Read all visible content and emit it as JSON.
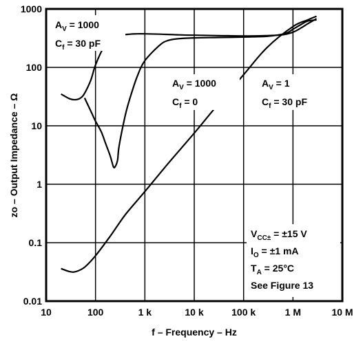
{
  "chart_data": {
    "type": "line",
    "xscale": "log",
    "yscale": "log",
    "xlim": [
      10,
      10000000
    ],
    "ylim": [
      0.01,
      1000
    ],
    "grid": true,
    "xlabel": "f – Frequency – Hz",
    "ylabel": "zo – Output Impedance – Ω",
    "xticks": [
      {
        "value": 10,
        "label": "10"
      },
      {
        "value": 100,
        "label": "100"
      },
      {
        "value": 1000,
        "label": "1 k"
      },
      {
        "value": 10000,
        "label": "10 k"
      },
      {
        "value": 100000,
        "label": "100 k"
      },
      {
        "value": 1000000,
        "label": "1 M"
      },
      {
        "value": 10000000,
        "label": "10 M"
      }
    ],
    "yticks": [
      {
        "value": 0.01,
        "label": "0.01"
      },
      {
        "value": 0.1,
        "label": "0.1"
      },
      {
        "value": 1,
        "label": "1"
      },
      {
        "value": 10,
        "label": "10"
      },
      {
        "value": 100,
        "label": "100"
      },
      {
        "value": 1000,
        "label": "1000"
      }
    ],
    "series": [
      {
        "id": "av1000-cf30",
        "x": [
          20,
          30,
          40,
          50,
          60,
          80,
          100,
          150,
          200,
          300,
          500,
          700,
          1000,
          2000,
          5000,
          10000,
          30000,
          100000,
          300000,
          600000,
          1000000,
          1500000,
          2000000,
          3000000
        ],
        "y": [
          35,
          29,
          28,
          30,
          36,
          60,
          110,
          230,
          300,
          350,
          370,
          375,
          375,
          370,
          360,
          355,
          350,
          345,
          350,
          360,
          400,
          480,
          560,
          680
        ]
      },
      {
        "id": "av1000-cf0",
        "x": [
          60,
          80,
          100,
          130,
          160,
          200,
          230,
          250,
          280,
          300,
          400,
          500,
          700,
          1000,
          2000,
          3000,
          5000,
          10000,
          30000,
          100000,
          300000,
          700000,
          1000000,
          1500000,
          2000000,
          3000000
        ],
        "y": [
          30,
          18,
          12,
          8,
          5,
          3,
          2,
          2,
          2.6,
          4.5,
          15,
          30,
          70,
          130,
          240,
          290,
          310,
          320,
          325,
          330,
          340,
          380,
          450,
          550,
          620,
          650
        ]
      },
      {
        "id": "av1-cf30",
        "x": [
          20,
          30,
          40,
          60,
          100,
          200,
          400,
          1000,
          3000,
          10000,
          30000,
          100000,
          300000,
          1000000,
          2000000,
          3000000
        ],
        "y": [
          0.036,
          0.032,
          0.032,
          0.038,
          0.06,
          0.13,
          0.3,
          0.75,
          2.3,
          7.5,
          23,
          75,
          220,
          500,
          650,
          750
        ]
      }
    ],
    "annotations": [
      {
        "lines": [
          {
            "main": "A",
            "sub": "V",
            "rest": " = 1000"
          },
          {
            "main": "C",
            "sub": "f",
            "rest": " = 30 pF"
          }
        ]
      },
      {
        "lines": [
          {
            "main": "A",
            "sub": "V",
            "rest": " = 1000"
          },
          {
            "main": "C",
            "sub": "f",
            "rest": " = 0"
          }
        ]
      },
      {
        "lines": [
          {
            "main": "A",
            "sub": "V",
            "rest": " = 1"
          },
          {
            "main": "C",
            "sub": "f",
            "rest": " = 30 pF"
          }
        ]
      },
      {
        "lines": [
          {
            "main": "V",
            "sub": "CC±",
            "rest": " = ±15 V"
          },
          {
            "main": "I",
            "sub": "O",
            "rest": " = ±1 mA"
          },
          {
            "main": "T",
            "sub": "A",
            "rest": " = 25°C"
          },
          {
            "main": "See Figure 13",
            "sub": "",
            "rest": ""
          }
        ]
      }
    ]
  }
}
